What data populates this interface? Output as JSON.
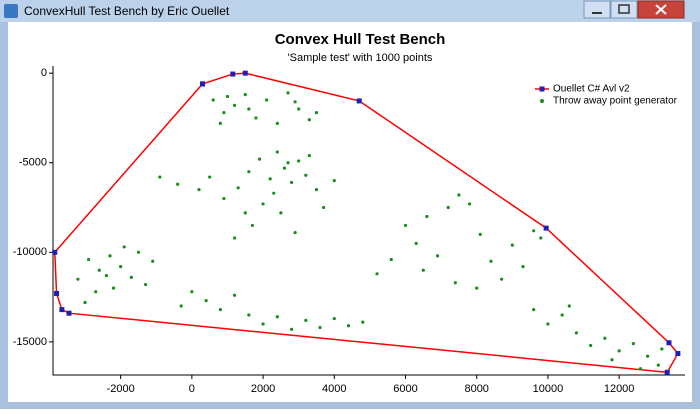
{
  "window": {
    "title": "ConvexHull Test Bench by Eric Ouellet"
  },
  "chart_data": {
    "type": "scatter",
    "title": "Convex Hull Test Bench",
    "subtitle": "'Sample test' with 1000 points",
    "xlim": [
      -3900,
      13850
    ],
    "ylim": [
      -16850,
      400
    ],
    "xticks": [
      -2000,
      0,
      2000,
      4000,
      6000,
      8000,
      10000,
      12000
    ],
    "yticks": [
      0,
      -5000,
      -10000,
      -15000
    ],
    "legend": "top-right",
    "series": [
      {
        "name": "Ouellet C# Avl v2",
        "kind": "line",
        "color": "#ff0000",
        "marker_color": "#1f1fb4",
        "x": [
          300,
          1150,
          1500,
          4700,
          9950,
          13400,
          13650,
          13350,
          -3450,
          -3650,
          -3800,
          -3850,
          300
        ],
        "values": [
          -600,
          -50,
          0,
          -1550,
          -8650,
          -15050,
          -15650,
          -16700,
          -13400,
          -13200,
          -12300,
          -10000,
          -600
        ]
      },
      {
        "name": "Throw away point generator",
        "kind": "points",
        "color": "#1a8c1a",
        "x": [
          600,
          900,
          1200,
          1500,
          1800,
          2100,
          2400,
          2700,
          3000,
          3300,
          800,
          1600,
          2900,
          3500,
          1000,
          -900,
          -400,
          200,
          500,
          900,
          1300,
          1600,
          1900,
          2200,
          2400,
          2600,
          2800,
          3000,
          3200,
          3500,
          2000,
          2500,
          1700,
          1200,
          2900,
          3700,
          4000,
          2300,
          2700,
          1500,
          3300,
          -3200,
          -2900,
          -2600,
          -2300,
          -2000,
          -1700,
          -1500,
          -2200,
          -2700,
          -1900,
          -1300,
          -3000,
          -2400,
          -1100,
          0,
          400,
          800,
          1200,
          1600,
          2000,
          2400,
          2800,
          3200,
          3600,
          4000,
          4400,
          4800,
          -300,
          6000,
          6300,
          6600,
          6900,
          7200,
          7500,
          7800,
          8100,
          8400,
          8700,
          9000,
          9300,
          9600,
          9800,
          6500,
          7400,
          8000,
          5200,
          5600,
          9600,
          10000,
          10400,
          10800,
          11200,
          11600,
          12000,
          12400,
          12800,
          13100,
          11800,
          12600,
          10600,
          13200
        ],
        "values": [
          -1500,
          -2200,
          -1800,
          -1200,
          -2500,
          -1500,
          -2800,
          -1100,
          -2000,
          -2600,
          -2800,
          -2000,
          -1600,
          -2200,
          -1300,
          -5800,
          -6200,
          -6500,
          -5800,
          -7000,
          -6400,
          -5500,
          -4800,
          -5900,
          -4400,
          -5300,
          -6100,
          -4900,
          -5700,
          -6500,
          -7300,
          -7800,
          -8500,
          -9200,
          -8900,
          -7500,
          -6000,
          -6700,
          -5000,
          -7800,
          -4600,
          -11500,
          -10400,
          -11000,
          -10200,
          -10800,
          -11400,
          -10000,
          -12000,
          -12200,
          -9700,
          -11800,
          -12800,
          -11300,
          -10500,
          -12200,
          -12700,
          -13200,
          -12400,
          -13500,
          -14000,
          -13600,
          -14300,
          -13800,
          -14200,
          -13700,
          -14100,
          -13900,
          -13000,
          -8500,
          -9500,
          -8000,
          -10200,
          -7500,
          -6800,
          -7300,
          -9000,
          -10500,
          -11500,
          -9600,
          -10800,
          -8800,
          -9200,
          -11000,
          -11700,
          -12000,
          -11200,
          -10400,
          -13200,
          -14000,
          -13500,
          -14500,
          -15200,
          -14800,
          -15500,
          -15100,
          -15800,
          -16300,
          -16000,
          -16500,
          -13000,
          -15400
        ]
      }
    ]
  }
}
